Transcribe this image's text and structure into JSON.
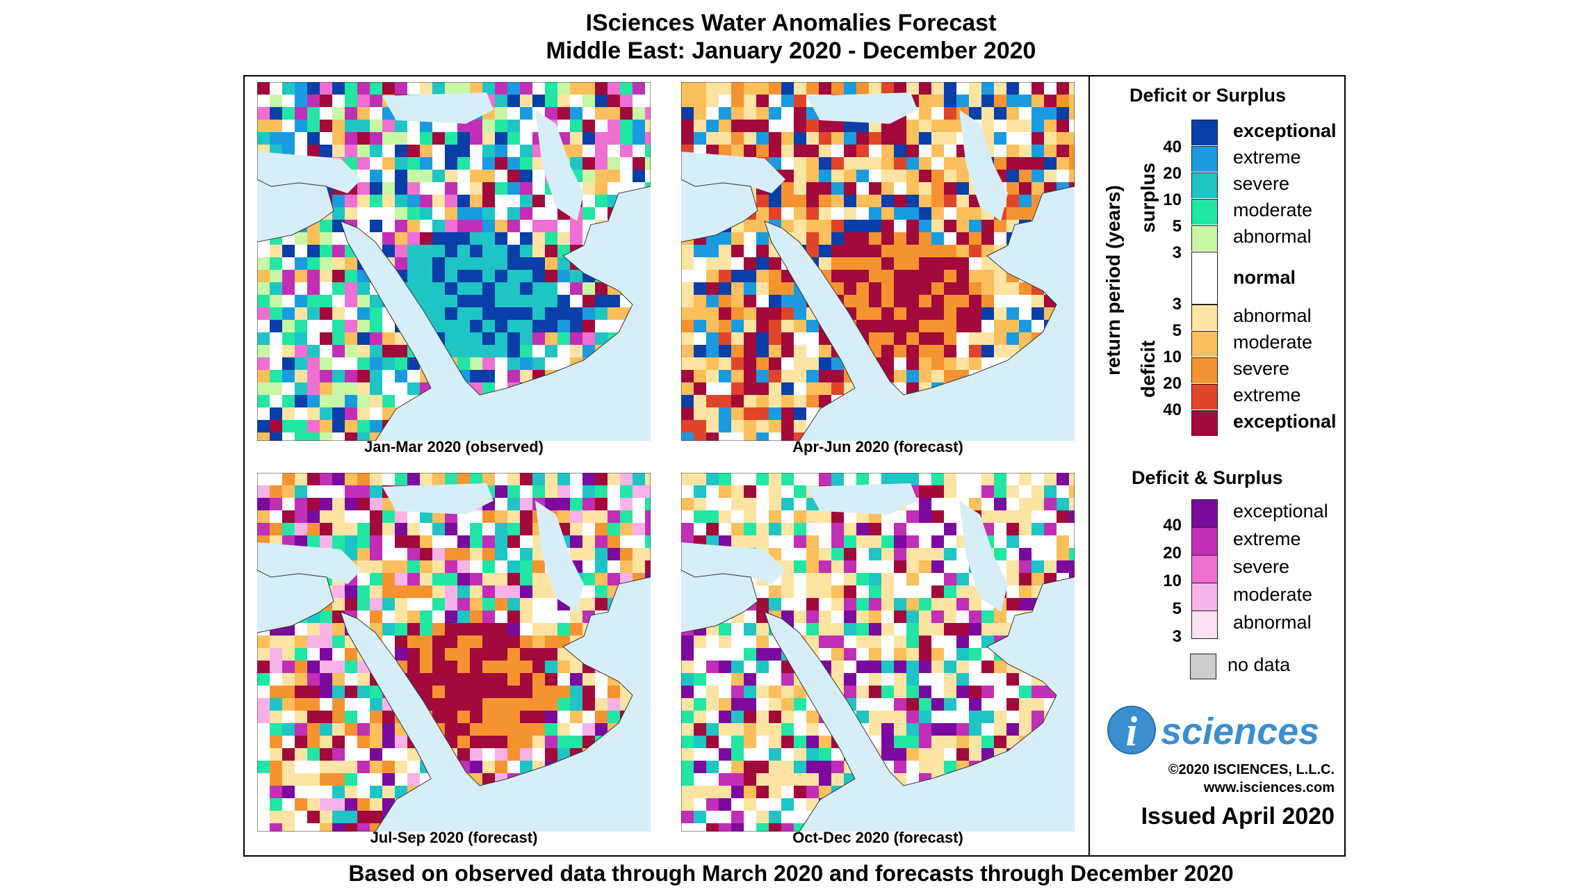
{
  "title": "ISciences Water Anomalies Forecast",
  "subtitle": "Middle East: January 2020 - December 2020",
  "footer": "Based on observed data through March 2020 and forecasts through December 2020",
  "panels": [
    {
      "caption": "Jan-Mar 2020 (observed)"
    },
    {
      "caption": "Apr-Jun 2020 (forecast)"
    },
    {
      "caption": "Jul-Sep 2020 (forecast)"
    },
    {
      "caption": "Oct-Dec 2020 (forecast)"
    }
  ],
  "legend": {
    "deficit_surplus_title": "Deficit or Surplus",
    "axis_label": "return period (years)",
    "surplus_label": "surplus",
    "deficit_label": "deficit",
    "surplus": [
      {
        "label": "exceptional",
        "color": "#0a3ea8",
        "bold": true
      },
      {
        "label": "extreme",
        "color": "#1a9be0",
        "bold": false
      },
      {
        "label": "severe",
        "color": "#1fc4c4",
        "bold": false
      },
      {
        "label": "moderate",
        "color": "#22e6a3",
        "bold": false
      },
      {
        "label": "abnormal",
        "color": "#c7f7a4",
        "bold": false
      }
    ],
    "normal": {
      "label": "normal",
      "color": "#ffffff"
    },
    "deficit": [
      {
        "label": "abnormal",
        "color": "#fde4a3",
        "bold": false
      },
      {
        "label": "moderate",
        "color": "#fbbf5b",
        "bold": false
      },
      {
        "label": "severe",
        "color": "#f59331",
        "bold": false
      },
      {
        "label": "extreme",
        "color": "#e0452a",
        "bold": false
      },
      {
        "label": "exceptional",
        "color": "#a10a3b",
        "bold": true
      }
    ],
    "surplus_ticks": [
      "40",
      "20",
      "10",
      "5",
      "3"
    ],
    "deficit_ticks": [
      "3",
      "5",
      "10",
      "20",
      "40"
    ],
    "both_title": "Deficit & Surplus",
    "both": [
      {
        "label": "exceptional",
        "color": "#7b0a9e"
      },
      {
        "label": "extreme",
        "color": "#c02fb5"
      },
      {
        "label": "severe",
        "color": "#f06fd2"
      },
      {
        "label": "moderate",
        "color": "#f7b3e8"
      },
      {
        "label": "abnormal",
        "color": "#fde0f2"
      }
    ],
    "both_ticks": [
      "40",
      "20",
      "10",
      "5",
      "3"
    ],
    "nodata": {
      "label": "no data",
      "color": "#cccccc"
    }
  },
  "logo_text": "sciences",
  "logo_letter": "i",
  "copyright": "©2020 ISCIENCES, L.L.C.",
  "website": "www.isciences.com",
  "issued": "Issued April 2020"
}
